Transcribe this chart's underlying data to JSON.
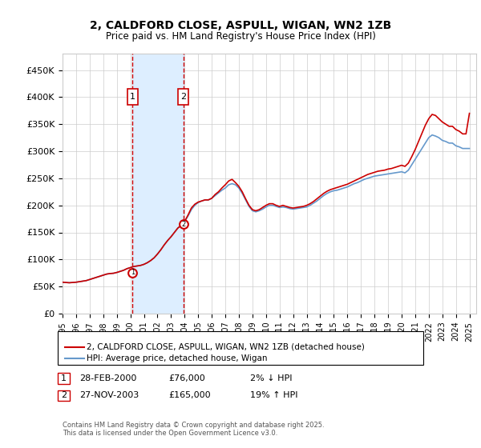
{
  "title": "2, CALDFORD CLOSE, ASPULL, WIGAN, WN2 1ZB",
  "subtitle": "Price paid vs. HM Land Registry's House Price Index (HPI)",
  "ylabel_ticks": [
    0,
    50000,
    100000,
    150000,
    200000,
    250000,
    300000,
    350000,
    400000,
    450000
  ],
  "ylabel_labels": [
    "£0",
    "£50K",
    "£100K",
    "£150K",
    "£200K",
    "£250K",
    "£300K",
    "£350K",
    "£400K",
    "£450K"
  ],
  "xlim_start": 1995.0,
  "xlim_end": 2025.5,
  "ylim": [
    0,
    480000
  ],
  "transaction1_date": 2000.163,
  "transaction1_price": 76000,
  "transaction1_label": "1",
  "transaction2_date": 2003.9,
  "transaction2_price": 165000,
  "transaction2_label": "2",
  "line_color_price": "#cc0000",
  "line_color_hpi": "#6699cc",
  "shade_color": "#ddeeff",
  "grid_color": "#cccccc",
  "background_color": "#ffffff",
  "legend_label_price": "2, CALDFORD CLOSE, ASPULL, WIGAN, WN2 1ZB (detached house)",
  "legend_label_hpi": "HPI: Average price, detached house, Wigan",
  "transaction_table": [
    {
      "num": "1",
      "date": "28-FEB-2000",
      "price": "£76,000",
      "change": "2% ↓ HPI"
    },
    {
      "num": "2",
      "date": "27-NOV-2003",
      "price": "£165,000",
      "change": "19% ↑ HPI"
    }
  ],
  "footnote": "Contains HM Land Registry data © Crown copyright and database right 2025.\nThis data is licensed under the Open Government Licence v3.0.",
  "hpi_data": {
    "years": [
      1995.0,
      1995.25,
      1995.5,
      1995.75,
      1996.0,
      1996.25,
      1996.5,
      1996.75,
      1997.0,
      1997.25,
      1997.5,
      1997.75,
      1998.0,
      1998.25,
      1998.5,
      1998.75,
      1999.0,
      1999.25,
      1999.5,
      1999.75,
      2000.0,
      2000.25,
      2000.5,
      2000.75,
      2001.0,
      2001.25,
      2001.5,
      2001.75,
      2002.0,
      2002.25,
      2002.5,
      2002.75,
      2003.0,
      2003.25,
      2003.5,
      2003.75,
      2004.0,
      2004.25,
      2004.5,
      2004.75,
      2005.0,
      2005.25,
      2005.5,
      2005.75,
      2006.0,
      2006.25,
      2006.5,
      2006.75,
      2007.0,
      2007.25,
      2007.5,
      2007.75,
      2008.0,
      2008.25,
      2008.5,
      2008.75,
      2009.0,
      2009.25,
      2009.5,
      2009.75,
      2010.0,
      2010.25,
      2010.5,
      2010.75,
      2011.0,
      2011.25,
      2011.5,
      2011.75,
      2012.0,
      2012.25,
      2012.5,
      2012.75,
      2013.0,
      2013.25,
      2013.5,
      2013.75,
      2014.0,
      2014.25,
      2014.5,
      2014.75,
      2015.0,
      2015.25,
      2015.5,
      2015.75,
      2016.0,
      2016.25,
      2016.5,
      2016.75,
      2017.0,
      2017.25,
      2017.5,
      2017.75,
      2018.0,
      2018.25,
      2018.5,
      2018.75,
      2019.0,
      2019.25,
      2019.5,
      2019.75,
      2020.0,
      2020.25,
      2020.5,
      2020.75,
      2021.0,
      2021.25,
      2021.5,
      2021.75,
      2022.0,
      2022.25,
      2022.5,
      2022.75,
      2023.0,
      2023.25,
      2023.5,
      2023.75,
      2024.0,
      2024.25,
      2024.5,
      2024.75,
      2025.0
    ],
    "hpi_values": [
      58000,
      57500,
      57000,
      57500,
      58000,
      59000,
      60000,
      61000,
      63000,
      65000,
      67000,
      69000,
      71000,
      73000,
      74000,
      74500,
      76000,
      78000,
      80000,
      83000,
      85000,
      87000,
      88000,
      89000,
      91000,
      94000,
      98000,
      103000,
      110000,
      118000,
      127000,
      135000,
      142000,
      150000,
      158000,
      163000,
      170000,
      180000,
      192000,
      200000,
      205000,
      208000,
      210000,
      210000,
      213000,
      218000,
      223000,
      228000,
      232000,
      238000,
      240000,
      238000,
      232000,
      222000,
      210000,
      198000,
      190000,
      188000,
      190000,
      193000,
      197000,
      200000,
      200000,
      198000,
      196000,
      197000,
      196000,
      194000,
      193000,
      194000,
      195000,
      196000,
      197000,
      200000,
      204000,
      208000,
      213000,
      218000,
      222000,
      225000,
      227000,
      228000,
      230000,
      232000,
      234000,
      237000,
      240000,
      242000,
      245000,
      248000,
      250000,
      252000,
      254000,
      255000,
      256000,
      257000,
      258000,
      259000,
      260000,
      261000,
      262000,
      260000,
      265000,
      275000,
      285000,
      295000,
      305000,
      315000,
      325000,
      330000,
      328000,
      325000,
      320000,
      318000,
      315000,
      315000,
      310000,
      308000,
      305000,
      305000,
      305000
    ],
    "price_values": [
      58000,
      57500,
      57000,
      57500,
      58000,
      59000,
      60000,
      61000,
      63000,
      65000,
      67000,
      69000,
      71000,
      73000,
      74000,
      74500,
      76000,
      78000,
      80000,
      83000,
      85000,
      87000,
      88000,
      89000,
      91000,
      94000,
      98000,
      103000,
      110000,
      118000,
      127000,
      135000,
      142000,
      150000,
      158000,
      163000,
      170000,
      182000,
      195000,
      202000,
      206000,
      208000,
      210000,
      210000,
      213000,
      220000,
      225000,
      232000,
      238000,
      245000,
      248000,
      242000,
      235000,
      225000,
      212000,
      200000,
      192000,
      190000,
      192000,
      196000,
      200000,
      203000,
      203000,
      200000,
      198000,
      200000,
      198000,
      196000,
      195000,
      196000,
      197000,
      198000,
      200000,
      203000,
      207000,
      212000,
      217000,
      222000,
      226000,
      229000,
      231000,
      233000,
      235000,
      237000,
      239000,
      242000,
      245000,
      248000,
      251000,
      254000,
      257000,
      259000,
      261000,
      263000,
      264000,
      265000,
      267000,
      268000,
      270000,
      272000,
      274000,
      272000,
      278000,
      290000,
      303000,
      318000,
      333000,
      348000,
      360000,
      368000,
      366000,
      360000,
      354000,
      350000,
      346000,
      346000,
      340000,
      337000,
      332000,
      332000,
      370000
    ]
  }
}
